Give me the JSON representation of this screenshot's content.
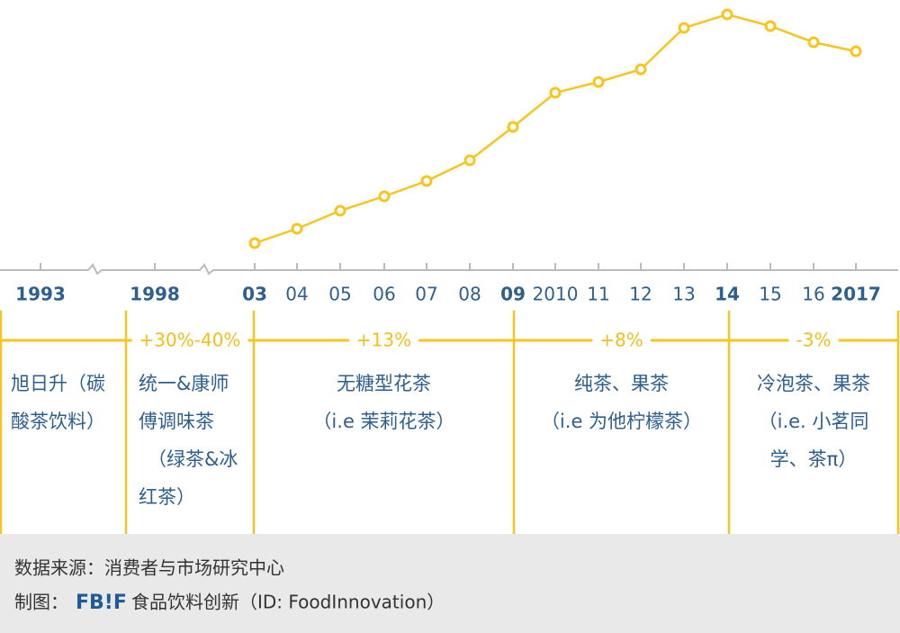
{
  "chart_data": {
    "type": "line",
    "categories": [
      "1993",
      "1998",
      "03",
      "04",
      "05",
      "06",
      "07",
      "08",
      "09",
      "2010",
      "11",
      "12",
      "13",
      "14",
      "15",
      "16",
      "2017"
    ],
    "values": [
      null,
      null,
      20,
      36,
      56,
      72,
      89,
      112,
      149,
      187,
      199,
      213,
      259,
      274,
      261,
      243,
      233
    ],
    "color": "#f7c51e",
    "periods": [
      {
        "lines": [
          "旭日升（碳",
          "酸茶饮料）"
        ]
      },
      {
        "growth": "+30%-40%",
        "lines": [
          "统一&康师",
          "傅调味茶",
          "（绿茶&冰",
          "红茶）"
        ]
      },
      {
        "growth": "+13%",
        "lines": [
          "无糖型花茶",
          "（i.e 茉莉花茶）"
        ]
      },
      {
        "growth": "+8%",
        "lines": [
          "纯茶、果茶",
          "（i.e 为他柠檬茶）"
        ]
      },
      {
        "growth": "-3%",
        "lines": [
          "冷泡茶、果茶",
          "（i.e. 小茗同",
          "学、茶π）"
        ]
      }
    ]
  },
  "footer": {
    "source": "数据来源：消费者与市场研究中心",
    "credit_prefix": "制图：",
    "logo": "FB!F",
    "credit": "食品饮料创新（ID: FoodInnovation）"
  }
}
